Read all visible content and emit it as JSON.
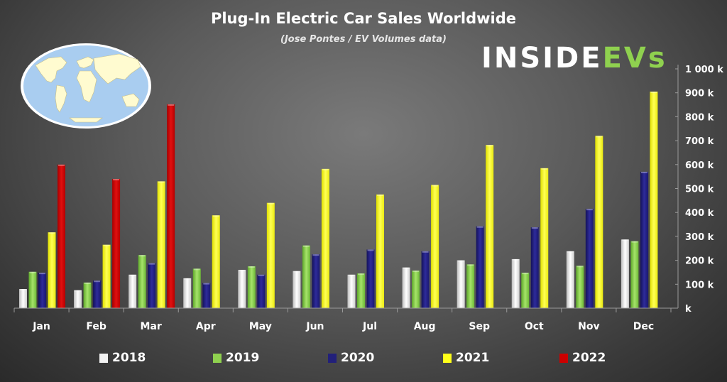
{
  "title": "Plug-In Electric Car Sales Worldwide",
  "subtitle": "(Jose Pontes / EV Volumes data)",
  "logo": {
    "main": "INSIDEEV",
    "suffix": "s"
  },
  "map_icon": "world-map-icon",
  "chart_data": {
    "type": "bar",
    "title": "Plug-In Electric Car Sales Worldwide",
    "subtitle": "(Jose Pontes / EV Volumes data)",
    "xlabel": "",
    "ylabel": "",
    "ylim": [
      0,
      1000000
    ],
    "y_ticks": [
      0,
      100000,
      200000,
      300000,
      400000,
      500000,
      600000,
      700000,
      800000,
      900000,
      1000000
    ],
    "y_tick_labels": [
      "k",
      "100 k",
      "200 k",
      "300 k",
      "400 k",
      "500 k",
      "600 k",
      "700 k",
      "800 k",
      "900 k",
      "1 000 k"
    ],
    "y_axis_side": "right",
    "grid": false,
    "legend_position": "bottom",
    "categories": [
      "Jan",
      "Feb",
      "Mar",
      "Apr",
      "May",
      "Jun",
      "Jul",
      "Aug",
      "Sep",
      "Oct",
      "Nov",
      "Dec"
    ],
    "series": [
      {
        "name": "2018",
        "color": "#f2f2f2",
        "values": [
          80000,
          75000,
          140000,
          125000,
          160000,
          155000,
          140000,
          170000,
          200000,
          205000,
          238000,
          287000
        ]
      },
      {
        "name": "2019",
        "color": "#8fd14f",
        "values": [
          152000,
          107000,
          222000,
          165000,
          175000,
          262000,
          145000,
          157000,
          183000,
          148000,
          177000,
          280000
        ]
      },
      {
        "name": "2020",
        "color": "#22207a",
        "values": [
          148000,
          115000,
          188000,
          105000,
          140000,
          225000,
          245000,
          238000,
          342000,
          338000,
          415000,
          570000
        ]
      },
      {
        "name": "2021",
        "color": "#ffff1a",
        "values": [
          317000,
          265000,
          530000,
          388000,
          440000,
          582000,
          475000,
          515000,
          682000,
          585000,
          720000,
          905000
        ]
      },
      {
        "name": "2022",
        "color": "#cc0000",
        "values": [
          600000,
          540000,
          852000,
          null,
          null,
          null,
          null,
          null,
          null,
          null,
          null,
          null
        ]
      }
    ]
  }
}
